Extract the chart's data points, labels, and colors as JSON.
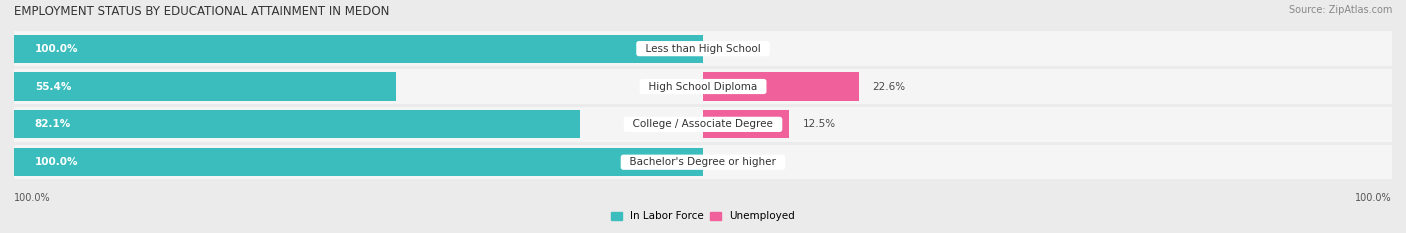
{
  "title": "EMPLOYMENT STATUS BY EDUCATIONAL ATTAINMENT IN MEDON",
  "source": "Source: ZipAtlas.com",
  "categories": [
    "Less than High School",
    "High School Diploma",
    "College / Associate Degree",
    "Bachelor's Degree or higher"
  ],
  "labor_force_pct": [
    100.0,
    55.4,
    82.1,
    100.0
  ],
  "unemployed_pct": [
    0.0,
    22.6,
    12.5,
    0.0
  ],
  "labor_force_color": "#3bbdbd",
  "unemployed_color_strong": "#f0609a",
  "unemployed_color_light": "#f5aac8",
  "bg_color": "#ebebeb",
  "row_bg_color": "#f5f5f5",
  "row_bg_alt": "#e8e8e8",
  "title_fontsize": 8.5,
  "label_fontsize": 7.5,
  "cat_fontsize": 7.5,
  "tick_fontsize": 7,
  "source_fontsize": 7,
  "lf_label_color_inside": "#ffffff",
  "lf_label_color_outside": "#4a4a4a",
  "un_label_color": "#4a4a4a"
}
